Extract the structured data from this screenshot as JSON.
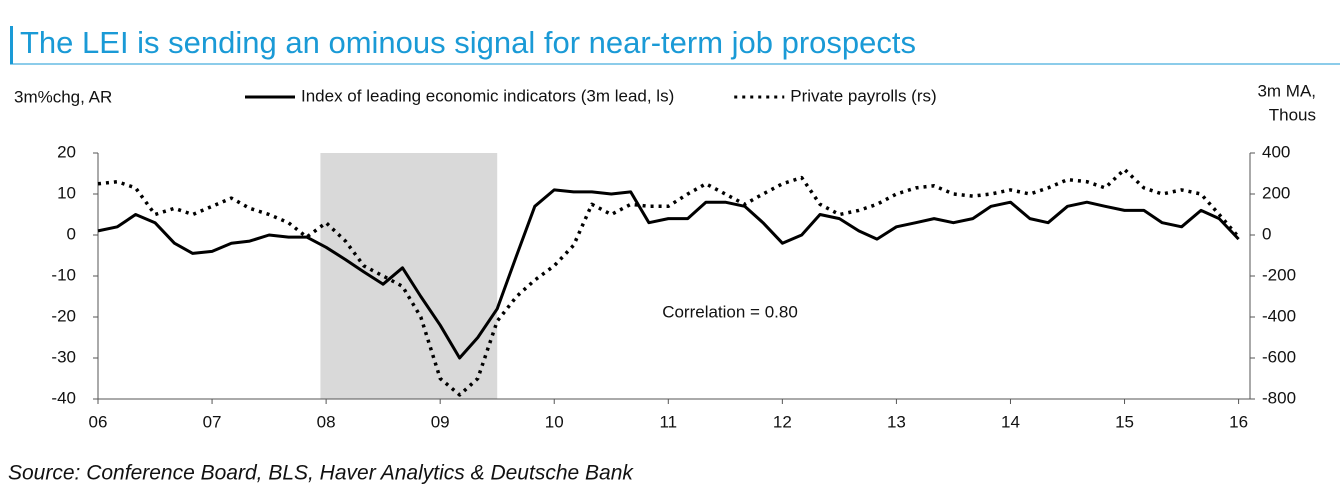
{
  "chart_data": {
    "type": "line",
    "title": "The LEI is sending an ominous signal for near-term job prospects",
    "y_label": "3m%chg, AR",
    "y2_label": [
      "3m MA,",
      "Thous"
    ],
    "annotation": "Correlation = 0.80",
    "source": "Source: Conference Board, BLS, Haver Analytics & Deutsche Bank",
    "x": [
      6,
      6.17,
      6.33,
      6.5,
      6.67,
      6.83,
      7,
      7.17,
      7.33,
      7.5,
      7.67,
      7.83,
      8,
      8.17,
      8.33,
      8.5,
      8.67,
      8.83,
      9,
      9.17,
      9.33,
      9.5,
      9.67,
      9.83,
      10,
      10.17,
      10.33,
      10.5,
      10.67,
      10.83,
      11,
      11.17,
      11.33,
      11.5,
      11.67,
      11.83,
      12,
      12.17,
      12.33,
      12.5,
      12.67,
      12.83,
      13,
      13.17,
      13.33,
      13.5,
      13.67,
      13.83,
      14,
      14.17,
      14.33,
      14.5,
      14.67,
      14.83,
      15,
      15.17,
      15.33,
      15.5,
      15.67,
      15.83,
      16
    ],
    "series": [
      {
        "name": "Index of leading economic indicators (3m lead, ls)",
        "color": "#000000",
        "style": "solid",
        "values": [
          1,
          2,
          5,
          3,
          -2,
          -4.5,
          -4,
          -2,
          -1.5,
          0,
          -0.5,
          -0.5,
          -3,
          -6,
          -9,
          -12,
          -8,
          -15,
          -22,
          -30,
          -25,
          -18,
          -5,
          7,
          11,
          10.5,
          10.5,
          10,
          10.5,
          3,
          4,
          4,
          8,
          8,
          7,
          3,
          -2,
          0,
          5,
          4,
          1,
          -1,
          2,
          3,
          4,
          3,
          4,
          7,
          8,
          4,
          3,
          7,
          8,
          7,
          6,
          6,
          3,
          2,
          6,
          4,
          -1
        ]
      },
      {
        "name": "Private payrolls (rs)",
        "color": "#000000",
        "style": "dotted",
        "axis": "y2",
        "values": [
          250,
          260,
          230,
          100,
          130,
          100,
          140,
          180,
          130,
          100,
          60,
          -10,
          60,
          -30,
          -150,
          -200,
          -250,
          -400,
          -700,
          -780,
          -700,
          -420,
          -300,
          -220,
          -150,
          -50,
          150,
          100,
          150,
          140,
          140,
          200,
          250,
          200,
          150,
          200,
          250,
          280,
          150,
          100,
          120,
          150,
          200,
          230,
          240,
          200,
          190,
          200,
          220,
          200,
          230,
          270,
          260,
          230,
          320,
          230,
          200,
          220,
          200,
          100,
          -10
        ]
      }
    ],
    "shaded_x": [
      7.95,
      9.5
    ],
    "xlim": [
      6,
      16.1
    ],
    "xticks": [
      {
        "value": 6,
        "label": "06"
      },
      {
        "value": 7,
        "label": "07"
      },
      {
        "value": 8,
        "label": "08"
      },
      {
        "value": 9,
        "label": "09"
      },
      10,
      11,
      12,
      13,
      14,
      15,
      16
    ],
    "ylim": [
      -40,
      20
    ],
    "yticks": [
      20,
      10,
      0,
      -10,
      -20,
      -30,
      -40
    ],
    "y2lim": [
      -800,
      400
    ],
    "y2ticks": [
      400,
      200,
      0,
      -200,
      -400,
      -600,
      -800
    ]
  }
}
